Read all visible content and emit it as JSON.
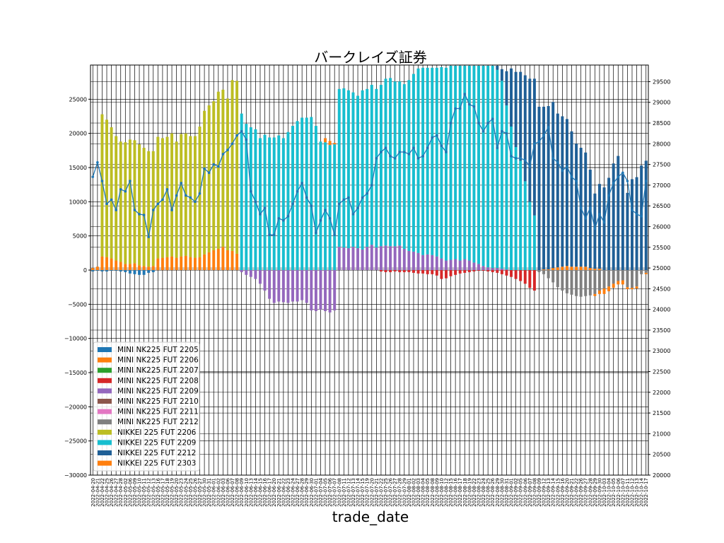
{
  "chart_data": {
    "type": "bar",
    "title": "バークレイズ証券",
    "xlabel": "trade_date",
    "ylabel": "",
    "ylim": [
      -30000,
      30000
    ],
    "y2lim": [
      20000,
      29900
    ],
    "yticks": [
      "−30000",
      "−25000",
      "−20000",
      "−15000",
      "−10000",
      "−5000",
      "0",
      "5000",
      "10000",
      "15000",
      "20000",
      "25000"
    ],
    "y2ticks": [
      "20000",
      "20500",
      "21000",
      "21500",
      "22000",
      "22500",
      "23000",
      "23500",
      "24000",
      "24500",
      "25000",
      "25500",
      "26000",
      "26500",
      "27000",
      "27500",
      "28000",
      "28500",
      "29000",
      "29500"
    ],
    "grid": true,
    "legend_position": "lower-left",
    "dates": [
      "2022-04-20",
      "2022-04-21",
      "2022-04-22",
      "2022-04-25",
      "2022-04-26",
      "2022-04-27",
      "2022-04-28",
      "2022-05-02",
      "2022-05-06",
      "2022-05-09",
      "2022-05-10",
      "2022-05-11",
      "2022-05-12",
      "2022-05-13",
      "2022-05-16",
      "2022-05-17",
      "2022-05-18",
      "2022-05-19",
      "2022-05-20",
      "2022-05-23",
      "2022-05-24",
      "2022-05-25",
      "2022-05-26",
      "2022-05-27",
      "2022-05-30",
      "2022-05-31",
      "2022-06-01",
      "2022-06-02",
      "2022-06-03",
      "2022-06-06",
      "2022-06-07",
      "2022-06-08",
      "2022-06-09",
      "2022-06-10",
      "2022-06-13",
      "2022-06-14",
      "2022-06-15",
      "2022-06-16",
      "2022-06-17",
      "2022-06-20",
      "2022-06-21",
      "2022-06-22",
      "2022-06-23",
      "2022-06-24",
      "2022-06-27",
      "2022-06-28",
      "2022-06-29",
      "2022-06-30",
      "2022-07-01",
      "2022-07-04",
      "2022-07-05",
      "2022-07-06",
      "2022-07-07",
      "2022-07-08",
      "2022-07-11",
      "2022-07-12",
      "2022-07-13",
      "2022-07-14",
      "2022-07-15",
      "2022-07-19",
      "2022-07-20",
      "2022-07-21",
      "2022-07-22",
      "2022-07-25",
      "2022-07-26",
      "2022-07-27",
      "2022-07-28",
      "2022-07-29",
      "2022-08-01",
      "2022-08-02",
      "2022-08-03",
      "2022-08-04",
      "2022-08-05",
      "2022-08-08",
      "2022-08-09",
      "2022-08-10",
      "2022-08-12",
      "2022-08-15",
      "2022-08-16",
      "2022-08-17",
      "2022-08-18",
      "2022-08-19",
      "2022-08-22",
      "2022-08-23",
      "2022-08-24",
      "2022-08-25",
      "2022-08-26",
      "2022-08-29",
      "2022-08-30",
      "2022-08-31",
      "2022-09-01",
      "2022-09-02",
      "2022-09-05",
      "2022-09-06",
      "2022-09-07",
      "2022-09-08",
      "2022-09-09",
      "2022-09-12",
      "2022-09-13",
      "2022-09-14",
      "2022-09-15",
      "2022-09-16",
      "2022-09-20",
      "2022-09-21",
      "2022-09-22",
      "2022-09-26",
      "2022-09-27",
      "2022-09-28",
      "2022-09-29",
      "2022-09-30",
      "2022-10-03",
      "2022-10-04",
      "2022-10-05",
      "2022-10-06",
      "2022-10-07",
      "2022-10-11",
      "2022-10-12",
      "2022-10-13",
      "2022-10-14",
      "2022-10-17"
    ],
    "series": [
      {
        "name": "MINI NK225 FUT 2205",
        "color": "#1f77b4"
      },
      {
        "name": "MINI NK225 FUT 2206",
        "color": "#ff7f0e"
      },
      {
        "name": "MINI NK225 FUT 2207",
        "color": "#2ca02c"
      },
      {
        "name": "MINI NK225 FUT 2208",
        "color": "#d62728"
      },
      {
        "name": "MINI NK225 FUT 2209",
        "color": "#9467bd"
      },
      {
        "name": "MINI NK225 FUT 2210",
        "color": "#8c564b"
      },
      {
        "name": "MINI NK225 FUT 2211",
        "color": "#e377c2"
      },
      {
        "name": "MINI NK225 FUT 2212",
        "color": "#7f7f7f"
      },
      {
        "name": "NIKKEI 225 FUT 2206",
        "color": "#bcbd22"
      },
      {
        "name": "NIKKEI 225 FUT 2209",
        "color": "#17becf"
      },
      {
        "name": "NIKKEI 225 FUT 2212",
        "color": "#1f5f96"
      },
      {
        "name": "NIKKEI 225 FUT 2303",
        "color": "#ff7f0e"
      }
    ],
    "segments": [
      {
        "from": 0,
        "to": 31,
        "pos": [
          {
            "s": 1,
            "v": [
              300,
              500,
              2000,
              1900,
              1700,
              1400,
              1200,
              900,
              900,
              1000,
              700,
              600,
              500,
              600,
              1700,
              1800,
              1900,
              2000,
              1800,
              2000,
              2100,
              1900,
              1800,
              1900,
              2300,
              2600,
              2900,
              3100,
              3400,
              2900,
              2800,
              2400
            ]
          },
          {
            "s": 8,
            "v": [
              0,
              0,
              20800,
              20100,
              19200,
              18200,
              17600,
              17800,
              18200,
              18000,
              17700,
              17300,
              16900,
              16800,
              17800,
              17500,
              17600,
              18000,
              17000,
              17900,
              17900,
              17700,
              17800,
              19100,
              21000,
              21500,
              21800,
              23000,
              23000,
              22200,
              25000,
              25300
            ]
          }
        ],
        "neg": [
          {
            "s": 0,
            "v": [
              -200,
              -100,
              -200,
              -200,
              -100,
              -100,
              -200,
              -300,
              -500,
              -600,
              -700,
              -700,
              -400,
              -300,
              0,
              0,
              0,
              0,
              0,
              0,
              0,
              0,
              0,
              0,
              0,
              0,
              0,
              0,
              0,
              0,
              0,
              0
            ]
          }
        ]
      },
      {
        "from": 32,
        "to": 52,
        "pos": [
          {
            "s": 9,
            "v": [
              22900,
              21400,
              20900,
              20600,
              19300,
              19800,
              19400,
              19400,
              19700,
              19300,
              20200,
              21100,
              21800,
              22300,
              22300,
              22400,
              21100,
              18800,
              18700,
              18300,
              18400
            ]
          },
          {
            "s": 1,
            "v": [
              0,
              0,
              0,
              0,
              0,
              0,
              0,
              0,
              0,
              0,
              0,
              0,
              0,
              0,
              0,
              0,
              0,
              0,
              600,
              600,
              200
            ]
          }
        ],
        "neg": [
          {
            "s": 4,
            "v": [
              -300,
              -700,
              -1000,
              -1300,
              -2000,
              -3000,
              -4200,
              -4800,
              -4600,
              -4700,
              -4800,
              -4600,
              -4600,
              -4400,
              -4800,
              -5900,
              -6000,
              -5800,
              -6000,
              -6200,
              -5900
            ]
          }
        ]
      },
      {
        "from": 53,
        "to": 67,
        "pos": [
          {
            "s": 4,
            "v": [
              3400,
              3300,
              3200,
              3400,
              3200,
              3000,
              3400,
              3700,
              3300,
              3500,
              3600,
              3500,
              3500,
              3600,
              3100
            ]
          },
          {
            "s": 9,
            "v": [
              23100,
              23300,
              23100,
              22600,
              22300,
              23300,
              23100,
              23400,
              23200,
              23600,
              24400,
              24600,
              24100,
              24000,
              24100
            ]
          }
        ],
        "neg": [
          {
            "s": 3,
            "v": [
              0,
              0,
              0,
              0,
              0,
              0,
              0,
              0,
              0,
              -200,
              -300,
              -300,
              -200,
              -300,
              -300
            ]
          }
        ]
      },
      {
        "from": 68,
        "to": 95,
        "pos": [
          {
            "s": 4,
            "v": [
              2800,
              2700,
              2500,
              2200,
              2300,
              2200,
              2000,
              1700,
              1400,
              1500,
              1600,
              1400,
              1600,
              1400,
              1100,
              900,
              600,
              400,
              300,
              300,
              200,
              100,
              0,
              0,
              0,
              0,
              0,
              0
            ]
          },
          {
            "s": 9,
            "v": [
              25000,
              26000,
              27000,
              27400,
              27300,
              27400,
              27600,
              28000,
              28200,
              28500,
              29000,
              29500,
              29800,
              30000,
              30000,
              30000,
              30000,
              30000,
              29600,
              29000,
              27500,
              24000,
              21000,
              18000,
              16000,
              13000,
              10000,
              8000
            ]
          },
          {
            "s": 10,
            "v": [
              0,
              0,
              0,
              0,
              0,
              0,
              0,
              0,
              0,
              0,
              0,
              0,
              0,
              0,
              0,
              0,
              0,
              0,
              0,
              600,
              1700,
              5000,
              8500,
              11000,
              13000,
              15500,
              18000,
              20000
            ]
          }
        ],
        "neg": [
          {
            "s": 3,
            "v": [
              -300,
              -400,
              -500,
              -500,
              -600,
              -600,
              -800,
              -1300,
              -1200,
              -900,
              -700,
              -500,
              -400,
              -300,
              -200,
              -100,
              -100,
              -200,
              -300,
              -400,
              -600,
              -800,
              -1000,
              -1300,
              -1600,
              -2000,
              -2600,
              -3000
            ]
          }
        ]
      },
      {
        "from": 96,
        "to": 119,
        "pos": [
          {
            "s": 11,
            "v": [
              0,
              100,
              100,
              300,
              400,
              500,
              600,
              500,
              500,
              500,
              500,
              300,
              200,
              200,
              0,
              0,
              0,
              0,
              0,
              0,
              0,
              0,
              0,
              0
            ]
          },
          {
            "s": 10,
            "v": [
              23900,
              23800,
              23900,
              24300,
              22500,
              22000,
              21500,
              19800,
              18000,
              17400,
              16700,
              14400,
              11000,
              12400,
              12100,
              13500,
              15600,
              16700,
              14000,
              11300,
              13300,
              13600,
              15300,
              16000
            ]
          }
        ],
        "neg": [
          {
            "s": 7,
            "v": [
              -300,
              -600,
              -1200,
              -1800,
              -2500,
              -3000,
              -3400,
              -3600,
              -3800,
              -3900,
              -3800,
              -3700,
              -3500,
              -3000,
              -2700,
              -2400,
              -2000,
              -1600,
              -1500,
              -2500,
              -2600,
              -2400,
              -600,
              -400
            ]
          },
          {
            "s": 11,
            "v": [
              0,
              0,
              0,
              0,
              0,
              0,
              0,
              0,
              0,
              0,
              0,
              0,
              -300,
              -500,
              -800,
              -700,
              -600,
              -500,
              -600,
              -300,
              -200,
              -300,
              0,
              -200
            ]
          }
        ]
      }
    ],
    "price": [
      27200,
      27550,
      27100,
      26550,
      26650,
      26400,
      26900,
      26850,
      27100,
      26400,
      26300,
      26280,
      25750,
      26400,
      26550,
      26650,
      26900,
      26400,
      26750,
      27050,
      26750,
      26700,
      26600,
      26800,
      27400,
      27300,
      27500,
      27450,
      27750,
      27850,
      28000,
      28200,
      28300,
      28100,
      26850,
      26600,
      26300,
      26450,
      25800,
      25800,
      26200,
      26150,
      26250,
      26550,
      26850,
      27050,
      26700,
      26500,
      25850,
      26150,
      26400,
      26200,
      25800,
      26550,
      26650,
      26700,
      26300,
      26450,
      26700,
      26800,
      27000,
      27650,
      27800,
      27900,
      27700,
      27650,
      27800,
      27800,
      27750,
      27900,
      27650,
      27700,
      27900,
      28150,
      28200,
      27950,
      27800,
      28500,
      28850,
      28850,
      29200,
      28950,
      28900,
      28500,
      28300,
      28500,
      28600,
      27900,
      28300,
      28250,
      27700,
      27650,
      27650,
      27600,
      27450,
      28000,
      28050,
      28200,
      28400,
      27650,
      27550,
      27350,
      27450,
      27200,
      27100,
      26450,
      26200,
      26450,
      25950,
      26300,
      26100,
      26750,
      27050,
      27200,
      27300,
      27100,
      26400,
      26300,
      26250,
      27100
    ]
  },
  "legend_items": [
    "MINI NK225 FUT 2205",
    "MINI NK225 FUT 2206",
    "MINI NK225 FUT 2207",
    "MINI NK225 FUT 2208",
    "MINI NK225 FUT 2209",
    "MINI NK225 FUT 2210",
    "MINI NK225 FUT 2211",
    "MINI NK225 FUT 2212",
    "NIKKEI 225 FUT 2206",
    "NIKKEI 225 FUT 2209",
    "NIKKEI 225 FUT 2212",
    "NIKKEI 225 FUT 2303"
  ],
  "line_color": "#1f77b4"
}
